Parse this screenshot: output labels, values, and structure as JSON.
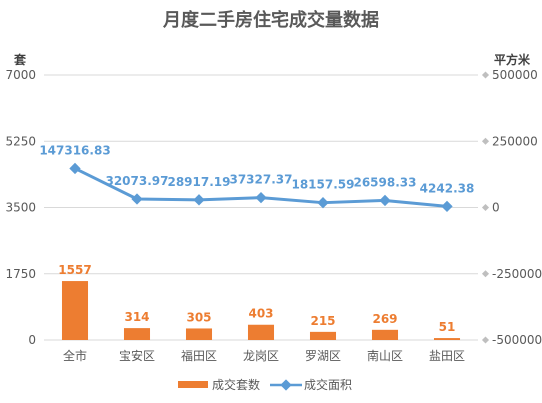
{
  "chart_data": {
    "type": "bar+line",
    "title": "月度二手房住宅成交量数据",
    "categories": [
      "全市",
      "宝安区",
      "福田区",
      "龙岗区",
      "罗湖区",
      "南山区",
      "盐田区"
    ],
    "series": [
      {
        "name": "成交套数",
        "type": "bar",
        "axis": "left",
        "values": [
          1557,
          314,
          305,
          403,
          215,
          269,
          51
        ],
        "labels": [
          "1557",
          "314",
          "305",
          "403",
          "215",
          "269",
          "51"
        ]
      },
      {
        "name": "成交面积",
        "type": "line",
        "axis": "right",
        "values": [
          147316.83,
          32073.97,
          28917.19,
          37327.37,
          18157.59,
          26598.33,
          4242.38
        ],
        "labels": [
          "147316.83",
          "32073.97",
          "28917.19",
          "37327.37",
          "18157.59",
          "26598.33",
          "4242.38"
        ]
      }
    ],
    "y_left": {
      "label": "套",
      "range": [
        0,
        7000
      ],
      "ticks": [
        0,
        1750,
        3500,
        5250,
        7000
      ],
      "tick_labels": [
        "0",
        "1750",
        "3500",
        "5250",
        "7000"
      ]
    },
    "y_right": {
      "label": "平方米",
      "range": [
        -500000,
        500000
      ],
      "ticks": [
        -500000,
        -250000,
        0,
        250000,
        500000
      ],
      "tick_labels": [
        "-500000",
        "-250000",
        "0",
        "250000",
        "500000"
      ]
    },
    "grid": true,
    "legend_position": "bottom",
    "colors": {
      "bar": "#ED7D31",
      "line": "#5B9BD5",
      "grid": "#D9D9D9",
      "text": "#595959"
    }
  }
}
